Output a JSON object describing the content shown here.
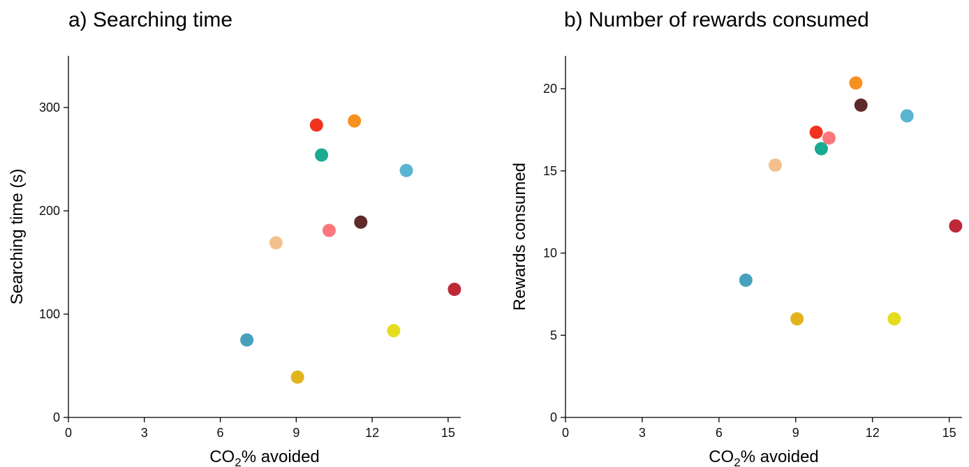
{
  "chart_data": [
    {
      "type": "scatter",
      "title": "a) Searching time",
      "xlabel": "CO",
      "xlabel_sub": "2",
      "xlabel_rest": "% avoided",
      "ylabel": "Searching time (s)",
      "xlim": [
        0,
        15.5
      ],
      "ylim": [
        0,
        350
      ],
      "x_ticks": [
        0,
        3,
        6,
        9,
        12,
        15
      ],
      "y_ticks": [
        0,
        100,
        200,
        300
      ],
      "x_tick_labels": [
        "0",
        "3",
        "6",
        "9",
        "12",
        "15"
      ],
      "y_tick_labels": [
        "0",
        "100",
        "200",
        "300"
      ],
      "points": [
        {
          "x": 9.8,
          "y": 283,
          "color": "#f0321e"
        },
        {
          "x": 11.3,
          "y": 287,
          "color": "#f7901e"
        },
        {
          "x": 10.0,
          "y": 254,
          "color": "#1aaa91"
        },
        {
          "x": 13.35,
          "y": 239,
          "color": "#5ab4d2"
        },
        {
          "x": 10.3,
          "y": 181,
          "color": "#fa787d"
        },
        {
          "x": 11.55,
          "y": 189,
          "color": "#5e2a2a"
        },
        {
          "x": 8.2,
          "y": 169,
          "color": "#f4c08e"
        },
        {
          "x": 15.25,
          "y": 124,
          "color": "#be2837"
        },
        {
          "x": 12.85,
          "y": 84,
          "color": "#e6dc1e"
        },
        {
          "x": 7.05,
          "y": 75,
          "color": "#46a0be"
        },
        {
          "x": 9.05,
          "y": 39,
          "color": "#e1b41e"
        }
      ]
    },
    {
      "type": "scatter",
      "title": "b) Number of rewards consumed",
      "xlabel": "CO",
      "xlabel_sub": "2",
      "xlabel_rest": "% avoided",
      "ylabel": "Rewards consumed",
      "xlim": [
        0,
        15.5
      ],
      "ylim": [
        0,
        22
      ],
      "x_ticks": [
        0,
        3,
        6,
        9,
        12,
        15
      ],
      "y_ticks": [
        0,
        5,
        10,
        15,
        20
      ],
      "x_tick_labels": [
        "0",
        "3",
        "6",
        "9",
        "12",
        "15"
      ],
      "y_tick_labels": [
        "0",
        "5",
        "10",
        "15",
        "20"
      ],
      "points": [
        {
          "x": 11.35,
          "y": 20.35,
          "color": "#f7901e"
        },
        {
          "x": 11.55,
          "y": 19.0,
          "color": "#5e2a2a"
        },
        {
          "x": 13.35,
          "y": 18.35,
          "color": "#5ab4d2"
        },
        {
          "x": 9.8,
          "y": 17.35,
          "color": "#f0321e"
        },
        {
          "x": 10.3,
          "y": 17.0,
          "color": "#fa787d"
        },
        {
          "x": 10.0,
          "y": 16.35,
          "color": "#1aaa91"
        },
        {
          "x": 8.2,
          "y": 15.35,
          "color": "#f4c08e"
        },
        {
          "x": 15.25,
          "y": 11.65,
          "color": "#be2837"
        },
        {
          "x": 7.05,
          "y": 8.35,
          "color": "#46a0be"
        },
        {
          "x": 9.05,
          "y": 6.0,
          "color": "#e1b41e"
        },
        {
          "x": 12.85,
          "y": 6.0,
          "color": "#e6dc1e"
        }
      ]
    }
  ]
}
